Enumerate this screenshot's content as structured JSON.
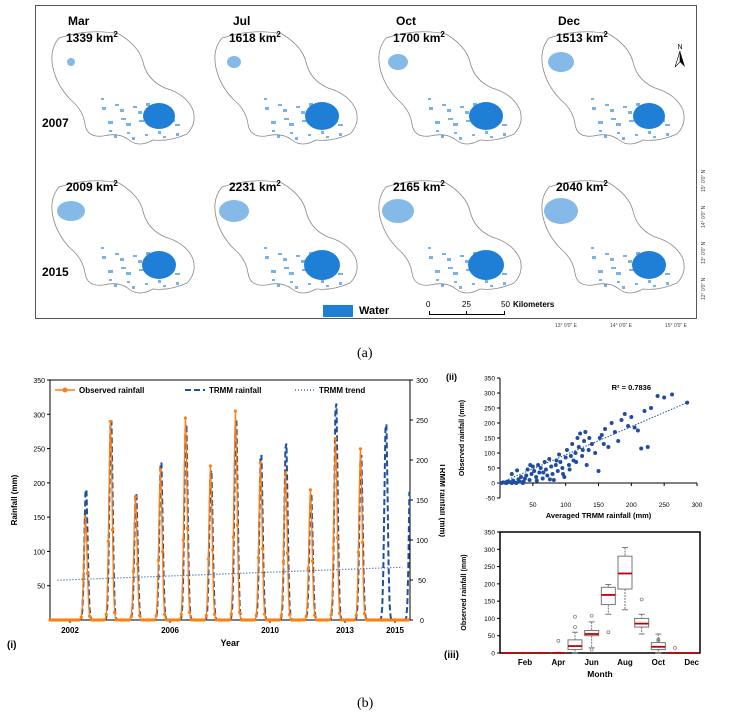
{
  "panel_a": {
    "months": [
      "Mar",
      "Jul",
      "Oct",
      "Dec"
    ],
    "years": [
      "2007",
      "2015"
    ],
    "areas": {
      "2007": [
        "1339",
        "1618",
        "1700",
        "1513"
      ],
      "2015": [
        "2009",
        "2231",
        "2165",
        "2040"
      ]
    },
    "area_unit": "km",
    "area_unit_sup": "2",
    "legend_water": "Water",
    "scale_ticks": [
      "0",
      "25",
      "50"
    ],
    "scale_unit": "Kilometers",
    "north": "N",
    "lat_labels": [
      "15° 0'0\" N",
      "14° 0'0\" N",
      "13° 0'0\" N",
      "12° 0'0\" N"
    ],
    "lon_labels": [
      "13° 0'0\" E",
      "14° 0'0\" E",
      "15° 0'0\" E"
    ],
    "colors": {
      "water": "#1f7fd6",
      "outline": "#888888"
    },
    "caption": "(a)"
  },
  "caption_b": "(b)",
  "chart_data": [
    {
      "id": "i",
      "panel_label": "(i)",
      "type": "line",
      "xlabel": "Year",
      "ylabel": "Rainfall (mm)",
      "y2label": "TRMM rainfall (mm)",
      "ylim": [
        0,
        350
      ],
      "y2lim": [
        0,
        300
      ],
      "xlim": [
        2001.2,
        2015.6
      ],
      "x_ticks": [
        "2002",
        "2006",
        "2010",
        "2013",
        "2015"
      ],
      "y_ticks": [
        "50",
        "100",
        "150",
        "200",
        "250",
        "300",
        "350"
      ],
      "y2_ticks": [
        "0",
        "50",
        "100",
        "150",
        "200",
        "250",
        "300"
      ],
      "series": [
        {
          "name": "Observed rainfall",
          "color": "#ff7f0e",
          "peak_years": [
            2002,
            2003,
            2004,
            2005,
            2006,
            2007,
            2008,
            2009,
            2010,
            2011,
            2012,
            2013
          ],
          "peaks": [
            150,
            290,
            180,
            220,
            295,
            225,
            305,
            230,
            215,
            190,
            265,
            250
          ]
        },
        {
          "name": "TRMM rainfall",
          "color": "#1f4e9e",
          "peak_years": [
            2002,
            2003,
            2004,
            2005,
            2006,
            2007,
            2008,
            2009,
            2010,
            2011,
            2012,
            2013,
            2014,
            2015
          ],
          "peaks": [
            170,
            260,
            165,
            205,
            255,
            195,
            260,
            215,
            230,
            165,
            282,
            215,
            255,
            270
          ]
        },
        {
          "name": "TRMM trend",
          "color": "#1f4e9e",
          "x": [
            2001.5,
            2015.3
          ],
          "y": [
            58,
            77
          ]
        }
      ]
    },
    {
      "id": "ii",
      "panel_label": "(ii)",
      "type": "scatter",
      "xlabel": "Averaged TRMM rainfall (mm)",
      "ylabel": "Observed rainfall (mm)",
      "xlim": [
        0,
        300
      ],
      "ylim": [
        -50,
        350
      ],
      "x_ticks": [
        "50",
        "100",
        "150",
        "200",
        "250",
        "300"
      ],
      "y_ticks": [
        "-50",
        "0",
        "50",
        "100",
        "150",
        "200",
        "250",
        "300",
        "350"
      ],
      "annotation": "R² = 0.7836",
      "color": "#1f4e9e",
      "trend": {
        "x": [
          0,
          285
        ],
        "y": [
          0,
          268
        ]
      },
      "points": [
        [
          2,
          0
        ],
        [
          5,
          2
        ],
        [
          8,
          1
        ],
        [
          10,
          0
        ],
        [
          12,
          5
        ],
        [
          15,
          3
        ],
        [
          18,
          0
        ],
        [
          20,
          8
        ],
        [
          22,
          2
        ],
        [
          25,
          0
        ],
        [
          28,
          12
        ],
        [
          30,
          5
        ],
        [
          32,
          20
        ],
        [
          35,
          0
        ],
        [
          38,
          15
        ],
        [
          40,
          25
        ],
        [
          42,
          45
        ],
        [
          45,
          10
        ],
        [
          48,
          30
        ],
        [
          50,
          55
        ],
        [
          52,
          40
        ],
        [
          55,
          20
        ],
        [
          58,
          60
        ],
        [
          60,
          35
        ],
        [
          62,
          50
        ],
        [
          65,
          15
        ],
        [
          68,
          70
        ],
        [
          70,
          45
        ],
        [
          72,
          25
        ],
        [
          75,
          80
        ],
        [
          78,
          55
        ],
        [
          80,
          30
        ],
        [
          82,
          10
        ],
        [
          85,
          60
        ],
        [
          88,
          40
        ],
        [
          90,
          95
        ],
        [
          92,
          70
        ],
        [
          95,
          50
        ],
        [
          98,
          20
        ],
        [
          100,
          85
        ],
        [
          102,
          110
        ],
        [
          105,
          60
        ],
        [
          108,
          90
        ],
        [
          110,
          130
        ],
        [
          112,
          75
        ],
        [
          115,
          100
        ],
        [
          118,
          150
        ],
        [
          120,
          120
        ],
        [
          122,
          165
        ],
        [
          125,
          90
        ],
        [
          128,
          140
        ],
        [
          130,
          170
        ],
        [
          132,
          60
        ],
        [
          135,
          110
        ],
        [
          140,
          130
        ],
        [
          145,
          100
        ],
        [
          150,
          40
        ],
        [
          152,
          150
        ],
        [
          155,
          160
        ],
        [
          158,
          130
        ],
        [
          160,
          180
        ],
        [
          165,
          120
        ],
        [
          170,
          200
        ],
        [
          175,
          170
        ],
        [
          180,
          140
        ],
        [
          185,
          210
        ],
        [
          190,
          230
        ],
        [
          195,
          190
        ],
        [
          200,
          220
        ],
        [
          205,
          185
        ],
        [
          210,
          175
        ],
        [
          215,
          115
        ],
        [
          220,
          240
        ],
        [
          225,
          120
        ],
        [
          230,
          250
        ],
        [
          240,
          290
        ],
        [
          250,
          285
        ],
        [
          262,
          295
        ],
        [
          285,
          268
        ],
        [
          18,
          30
        ],
        [
          26,
          42
        ],
        [
          36,
          5
        ],
        [
          46,
          60
        ],
        [
          56,
          8
        ],
        [
          66,
          35
        ],
        [
          76,
          12
        ],
        [
          86,
          75
        ],
        [
          96,
          30
        ],
        [
          106,
          45
        ],
        [
          116,
          70
        ],
        [
          126,
          110
        ],
        [
          136,
          150
        ]
      ]
    },
    {
      "id": "iii",
      "panel_label": "(iii)",
      "type": "box",
      "xlabel": "Month",
      "ylabel": "Observed rainfall (mm)",
      "ylim": [
        0,
        350
      ],
      "y_ticks": [
        "0",
        "50",
        "100",
        "150",
        "200",
        "250",
        "300",
        "350"
      ],
      "x_ticks": [
        "Feb",
        "Apr",
        "Jun",
        "Aug",
        "Oct",
        "Dec"
      ],
      "boxes": [
        {
          "month": 1,
          "min": 0,
          "q1": 0,
          "median": 0,
          "q3": 0,
          "max": 0,
          "outliers": []
        },
        {
          "month": 2,
          "min": 0,
          "q1": 0,
          "median": 0,
          "q3": 0,
          "max": 0,
          "outliers": []
        },
        {
          "month": 3,
          "min": 0,
          "q1": 0,
          "median": 0,
          "q3": 0,
          "max": 0,
          "outliers": []
        },
        {
          "month": 4,
          "min": 0,
          "q1": 0,
          "median": 0,
          "q3": 1,
          "max": 2,
          "outliers": [
            35
          ]
        },
        {
          "month": 5,
          "min": 0,
          "q1": 10,
          "median": 20,
          "q3": 38,
          "max": 60,
          "outliers": [
            105,
            75
          ]
        },
        {
          "month": 6,
          "min": 15,
          "q1": 50,
          "median": 55,
          "q3": 65,
          "max": 90,
          "outliers": [
            108,
            10
          ]
        },
        {
          "month": 7,
          "min": 112,
          "q1": 140,
          "median": 168,
          "q3": 190,
          "max": 198,
          "outliers": [
            60
          ]
        },
        {
          "month": 8,
          "min": 125,
          "q1": 185,
          "median": 230,
          "q3": 280,
          "max": 305,
          "outliers": []
        },
        {
          "month": 9,
          "min": 55,
          "q1": 75,
          "median": 85,
          "q3": 100,
          "max": 112,
          "outliers": [
            155
          ]
        },
        {
          "month": 10,
          "min": 0,
          "q1": 10,
          "median": 18,
          "q3": 30,
          "max": 55,
          "outliers": [
            40,
            35
          ]
        },
        {
          "month": 11,
          "min": 0,
          "q1": 0,
          "median": 0,
          "q3": 0,
          "max": 0,
          "outliers": [
            15
          ]
        },
        {
          "month": 12,
          "min": 0,
          "q1": 0,
          "median": 0,
          "q3": 0,
          "max": 0,
          "outliers": []
        }
      ],
      "median_color": "#c00000"
    }
  ]
}
